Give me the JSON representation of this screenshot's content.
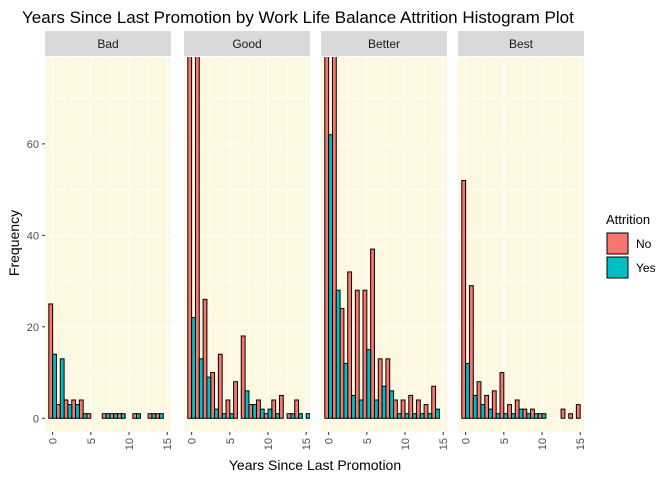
{
  "chart_data": {
    "type": "bar",
    "title": "Years Since Last Promotion by Work Life Balance Attrition Histogram Plot",
    "xlabel": "Years Since Last Promotion",
    "ylabel": "Frequency",
    "xlim": [
      -1,
      15.5
    ],
    "ylim": [
      -3,
      79
    ],
    "x_ticks": [
      0,
      5,
      10,
      15
    ],
    "y_ticks": [
      0,
      20,
      40,
      60
    ],
    "grid": true,
    "panel_background": "#fdf8e1",
    "strip_background": "#d9d9d9",
    "legend": {
      "title": "Attrition",
      "placement": "right"
    },
    "series": [
      {
        "name": "No",
        "color": "#f8766d"
      },
      {
        "name": "Yes",
        "color": "#00bfc4"
      }
    ],
    "facets": [
      {
        "label": "Bad",
        "No": [
          25,
          3,
          4,
          4,
          4,
          1,
          0,
          1,
          1,
          1,
          0,
          1,
          0,
          1,
          1,
          0
        ],
        "Yes": [
          14,
          13,
          3,
          3,
          1,
          0,
          0,
          1,
          1,
          1,
          0,
          1,
          0,
          1,
          1,
          0
        ]
      },
      {
        "label": "Good",
        "No": [
          80,
          80,
          26,
          10,
          14,
          4,
          8,
          18,
          3,
          4,
          1,
          4,
          5,
          1,
          4,
          0
        ],
        "Yes": [
          22,
          13,
          9,
          2,
          1,
          1,
          0,
          6,
          3,
          2,
          2,
          1,
          0,
          1,
          1,
          1
        ]
      },
      {
        "label": "Better",
        "No": [
          80,
          80,
          24,
          32,
          28,
          28,
          37,
          13,
          13,
          4,
          4,
          5,
          4,
          3,
          7,
          0
        ],
        "Yes": [
          62,
          28,
          12,
          5,
          4,
          15,
          4,
          7,
          6,
          1,
          1,
          1,
          1,
          1,
          2,
          0
        ]
      },
      {
        "label": "Best",
        "No": [
          52,
          29,
          8,
          5,
          6,
          10,
          3,
          4,
          2,
          2,
          1,
          0,
          0,
          2,
          1,
          3
        ],
        "Yes": [
          12,
          5,
          3,
          2,
          1,
          1,
          1,
          2,
          1,
          1,
          1,
          0,
          0,
          0,
          0,
          0
        ]
      }
    ]
  }
}
